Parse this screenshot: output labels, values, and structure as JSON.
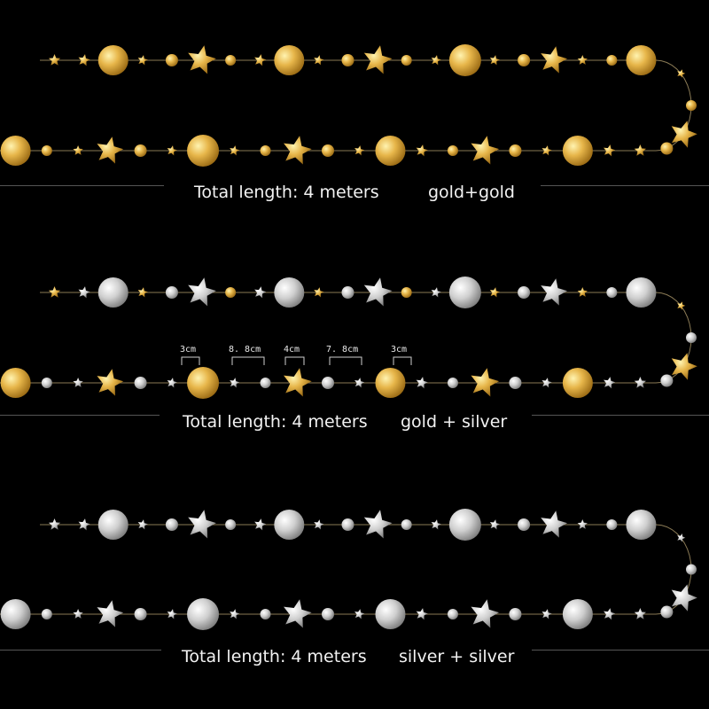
{
  "colors": {
    "background": "#000000",
    "gold": "#e0aa3a",
    "silver": "#d6d6d6",
    "string": "#8a7a55",
    "text": "#f2f2f2"
  },
  "garlands": [
    {
      "length_label": "Total length: 4 meters",
      "color_label": "gold+gold",
      "colors": [
        "gold",
        "gold"
      ]
    },
    {
      "length_label": "Total length: 4 meters",
      "color_label": "gold + silver",
      "colors": [
        "gold",
        "silver"
      ]
    },
    {
      "length_label": "Total length: 4 meters",
      "color_label": "silver + silver",
      "colors": [
        "silver",
        "silver"
      ]
    }
  ],
  "dimensions": [
    "3cm",
    "8. 8cm",
    "4cm",
    "7. 8cm",
    "3cm"
  ]
}
